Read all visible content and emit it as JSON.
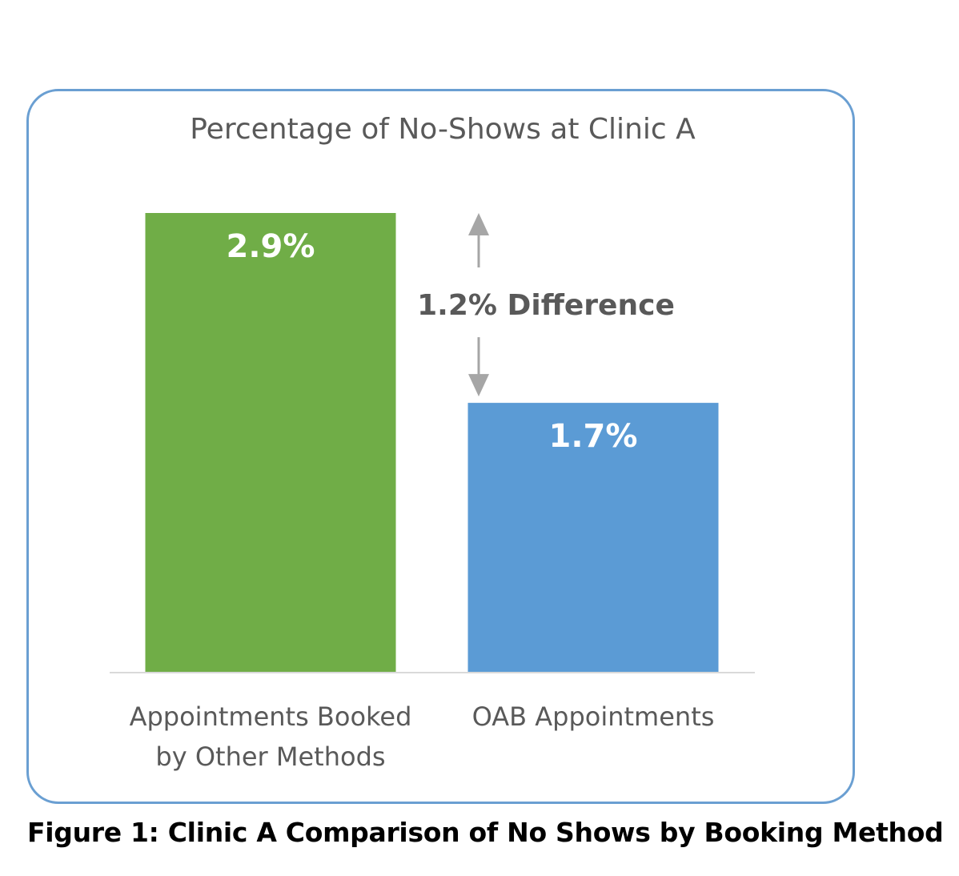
{
  "chart_data": {
    "type": "bar",
    "title": "Percentage of No-Shows at Clinic A",
    "categories": [
      [
        "Appointments Booked",
        "by Other Methods"
      ],
      [
        "OAB Appointments"
      ]
    ],
    "values": [
      2.9,
      1.7
    ],
    "data_labels": [
      "2.9%",
      "1.7%"
    ],
    "colors": [
      "#70ad47",
      "#5b9bd5"
    ],
    "ylim": [
      0,
      3.0
    ],
    "grid": false,
    "legend": "none",
    "annotation": {
      "text": "1.2% Difference",
      "from_value": 2.9,
      "to_value": 1.7
    }
  },
  "caption": "Figure 1: Clinic A Comparison of No Shows by Booking Method",
  "colors": {
    "frame_border": "#6a9fd2",
    "title_text": "#595959",
    "axis_label_text": "#595959",
    "annotation_text": "#595959",
    "arrow": "#a6a6a6",
    "axis_line": "#d9d9d9",
    "data_label": "#ffffff"
  }
}
